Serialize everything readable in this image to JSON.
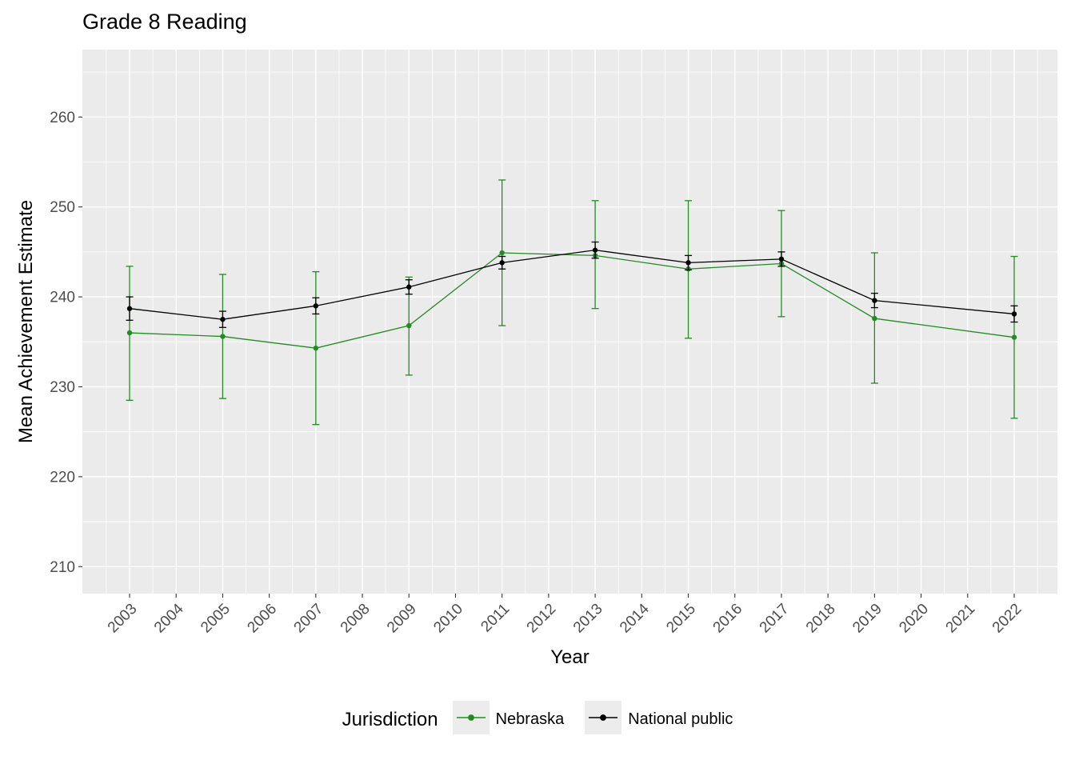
{
  "chart_data": {
    "type": "line",
    "title": "Grade 8 Reading",
    "xlabel": "Year",
    "ylabel": "Mean Achievement Estimate",
    "legend_title": "Jurisdiction",
    "legend_position": "bottom",
    "grid": true,
    "panel_bg": "#EBEBEB",
    "x_categories": [
      "2003",
      "2004",
      "2005",
      "2006",
      "2007",
      "2008",
      "2009",
      "2010",
      "2011",
      "2012",
      "2013",
      "2014",
      "2015",
      "2016",
      "2017",
      "2018",
      "2019",
      "2020",
      "2021",
      "2022"
    ],
    "yticks": [
      210,
      220,
      230,
      240,
      250,
      260
    ],
    "yticks_minor": [
      215,
      225,
      235,
      245,
      255,
      265
    ],
    "ylim": [
      207,
      267.5
    ],
    "series": [
      {
        "name": "Nebraska",
        "color": "#228B22",
        "x": [
          2003,
          2005,
          2007,
          2009,
          2011,
          2013,
          2015,
          2017,
          2019,
          2022
        ],
        "y": [
          236.0,
          235.6,
          234.3,
          236.8,
          244.9,
          244.6,
          243.1,
          243.7,
          237.6,
          235.5
        ],
        "ymin": [
          228.5,
          228.7,
          225.8,
          231.3,
          236.8,
          238.7,
          235.4,
          237.8,
          230.4,
          226.5
        ],
        "ymax": [
          243.4,
          242.5,
          242.8,
          242.2,
          253.0,
          250.7,
          250.7,
          249.6,
          244.9,
          244.5
        ]
      },
      {
        "name": "National public",
        "color": "#000000",
        "x": [
          2003,
          2005,
          2007,
          2009,
          2011,
          2013,
          2015,
          2017,
          2019,
          2022
        ],
        "y": [
          238.7,
          237.5,
          239.0,
          241.1,
          243.8,
          245.2,
          243.8,
          244.2,
          239.6,
          238.1
        ],
        "ymin": [
          237.4,
          236.6,
          238.1,
          240.3,
          243.1,
          244.3,
          243.0,
          243.4,
          238.8,
          237.2
        ],
        "ymax": [
          240.0,
          238.4,
          239.9,
          241.9,
          244.5,
          246.1,
          244.6,
          245.0,
          240.4,
          239.0
        ]
      }
    ]
  }
}
